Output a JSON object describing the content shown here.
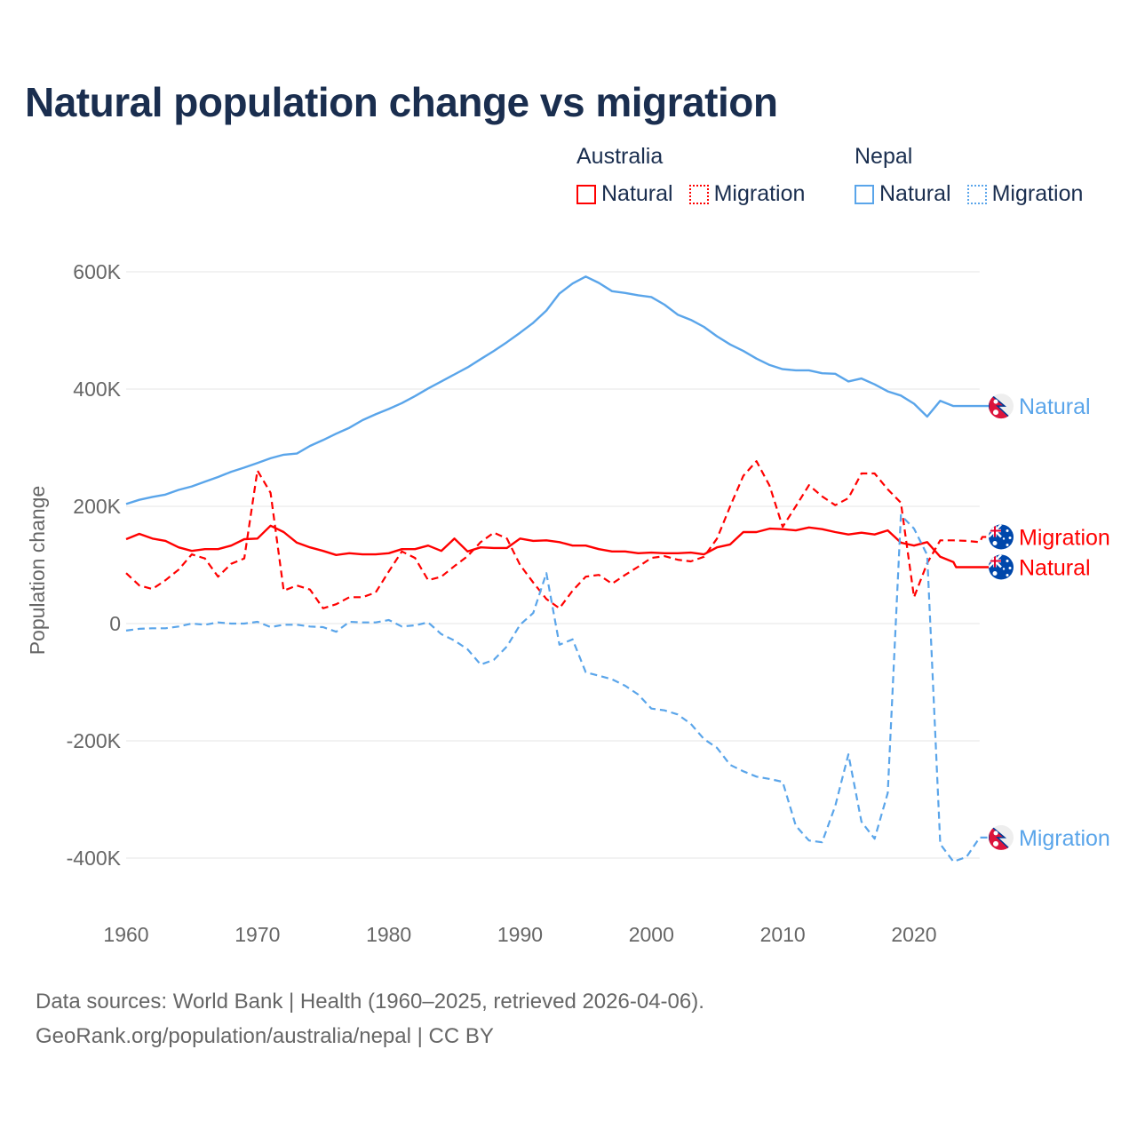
{
  "title": "Natural population change vs migration",
  "legend": {
    "groups": [
      {
        "name": "Australia",
        "color": "#ff0000",
        "items": [
          "Natural",
          "Migration"
        ]
      },
      {
        "name": "Nepal",
        "color": "#5aa5ea",
        "items": [
          "Natural",
          "Migration"
        ]
      }
    ]
  },
  "source": {
    "line1": "Data sources: World Bank | Health (1960–2025, retrieved 2026-04-06).",
    "line2": "GeoRank.org/population/australia/nepal | CC BY"
  },
  "chart_data": {
    "type": "line",
    "title": "Natural population change vs migration",
    "xlabel": "",
    "ylabel": "Population change",
    "xlim": [
      1960,
      2025
    ],
    "ylim": [
      -500000,
      600000
    ],
    "x_ticks": [
      1960,
      1970,
      1980,
      1990,
      2000,
      2010,
      2020
    ],
    "y_ticks": [
      600000,
      400000,
      200000,
      0,
      -200000,
      -400000
    ],
    "y_tick_labels": [
      "600K",
      "400K",
      "200K",
      "0",
      "-200K",
      "-400K"
    ],
    "grid": true,
    "x_start": 1960,
    "series": [
      {
        "name": "Natural",
        "country": "Australia",
        "label": "Natural",
        "color": "#ff0000",
        "dash": false,
        "flag": "australia",
        "values_thousands": [
          144,
          153,
          145,
          141,
          130,
          124,
          127,
          127,
          133,
          144,
          145,
          167,
          156,
          138,
          130,
          124,
          117,
          120,
          118,
          118,
          120,
          127,
          127,
          133,
          124,
          145,
          123,
          130,
          129,
          129,
          145,
          141,
          142,
          139,
          133,
          133,
          127,
          123,
          123,
          120,
          121,
          120,
          120,
          121,
          118,
          130,
          135,
          156,
          156,
          162,
          161,
          159,
          164,
          161,
          156,
          152,
          155,
          152,
          159,
          138,
          133,
          139,
          114,
          105
        ]
      },
      {
        "name": "Migration",
        "country": "Australia",
        "label": "Migration",
        "color": "#ff0000",
        "dash": true,
        "flag": "australia",
        "values_thousands": [
          86,
          65,
          59,
          74,
          92,
          118,
          111,
          80,
          102,
          111,
          261,
          223,
          56,
          65,
          58,
          26,
          33,
          45,
          45,
          53,
          89,
          123,
          112,
          74,
          80,
          98,
          115,
          139,
          155,
          145,
          100,
          70,
          42,
          26,
          56,
          80,
          83,
          68,
          83,
          97,
          112,
          115,
          109,
          106,
          114,
          145,
          200,
          252,
          277,
          235,
          165,
          200,
          236,
          217,
          202,
          214,
          256,
          256,
          229,
          206,
          45,
          103,
          142,
          142,
          141,
          139
        ]
      },
      {
        "name": "Natural",
        "country": "Nepal",
        "label": "Natural",
        "color": "#5aa5ea",
        "dash": false,
        "flag": "nepal",
        "values_thousands": [
          204,
          211,
          216,
          220,
          228,
          234,
          242,
          250,
          259,
          266,
          274,
          282,
          288,
          290,
          303,
          313,
          324,
          334,
          347,
          357,
          366,
          376,
          388,
          401,
          413,
          425,
          437,
          451,
          465,
          480,
          496,
          513,
          534,
          563,
          580,
          592,
          581,
          567,
          564,
          560,
          557,
          544,
          527,
          518,
          506,
          490,
          476,
          465,
          452,
          441,
          434,
          432,
          432,
          427,
          426,
          413,
          418,
          408,
          396,
          389,
          375,
          353,
          380,
          371
        ]
      },
      {
        "name": "Migration",
        "country": "Nepal",
        "label": "Migration",
        "color": "#5aa5ea",
        "dash": true,
        "flag": "nepal",
        "values_thousands": [
          -12,
          -9,
          -8,
          -8,
          -5,
          0,
          -2,
          2,
          0,
          0,
          3,
          -6,
          -2,
          -2,
          -5,
          -6,
          -14,
          3,
          2,
          2,
          6,
          -5,
          -3,
          2,
          -18,
          -29,
          -44,
          -70,
          -62,
          -39,
          -2,
          18,
          86,
          -36,
          -27,
          -83,
          -89,
          -95,
          -106,
          -121,
          -145,
          -148,
          -155,
          -171,
          -197,
          -212,
          -241,
          -252,
          -261,
          -265,
          -270,
          -345,
          -370,
          -373,
          -311,
          -223,
          -338,
          -367,
          -289,
          185,
          162,
          117,
          -376,
          -406,
          -398,
          -365
        ]
      }
    ]
  }
}
